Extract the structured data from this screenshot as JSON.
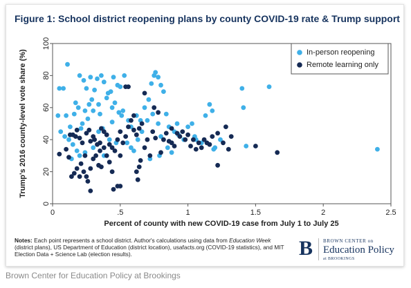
{
  "figure": {
    "title": "Figure 1: School district reopening plans by county COVID-19 rate & Trump support"
  },
  "colors": {
    "inperson": "#3fb0e8",
    "remote": "#152a54",
    "title": "#16335e",
    "grid": "#e6e6e6"
  },
  "chart_data": {
    "type": "scatter",
    "title": "Figure 1: School district reopening plans by county COVID-19 rate & Trump support",
    "xlabel": "Percent of county with new COVID-19 case from July 1 to July 25",
    "ylabel": "Trump's 2016 county-level vote share (%)",
    "xlim": [
      0,
      2.5
    ],
    "ylim": [
      0,
      100
    ],
    "xticks": [
      0,
      0.5,
      1,
      1.5,
      2,
      2.5
    ],
    "xtick_labels": [
      "0",
      ".5",
      "1",
      "1.5",
      "2",
      "2.5"
    ],
    "yticks": [
      0,
      20,
      40,
      60,
      80,
      100
    ],
    "ytick_labels": [
      "0",
      "20",
      "40",
      "60",
      "80",
      "100"
    ],
    "grid": "horizontal",
    "legend_position": "top-right",
    "series": [
      {
        "name": "In-person reopening",
        "color": "#3fb0e8",
        "points": [
          [
            0.05,
            72
          ],
          [
            0.08,
            72
          ],
          [
            0.11,
            87
          ],
          [
            0.04,
            55
          ],
          [
            0.1,
            55
          ],
          [
            0.17,
            63
          ],
          [
            0.2,
            80
          ],
          [
            0.23,
            77
          ],
          [
            0.25,
            72
          ],
          [
            0.28,
            79
          ],
          [
            0.31,
            71
          ],
          [
            0.33,
            78
          ],
          [
            0.36,
            80
          ],
          [
            0.38,
            76
          ],
          [
            0.4,
            66
          ],
          [
            0.43,
            70
          ],
          [
            0.45,
            79
          ],
          [
            0.48,
            74
          ],
          [
            0.5,
            73
          ],
          [
            0.53,
            80
          ],
          [
            0.3,
            58
          ],
          [
            0.24,
            58
          ],
          [
            0.27,
            62
          ],
          [
            0.34,
            62
          ],
          [
            0.41,
            69
          ],
          [
            0.46,
            63
          ],
          [
            0.49,
            57
          ],
          [
            0.51,
            55
          ],
          [
            0.22,
            50
          ],
          [
            0.26,
            53
          ],
          [
            0.16,
            56
          ],
          [
            0.19,
            60
          ],
          [
            0.29,
            65
          ],
          [
            0.35,
            56
          ],
          [
            0.44,
            60
          ],
          [
            0.52,
            58
          ],
          [
            0.06,
            45
          ],
          [
            0.09,
            42
          ],
          [
            0.12,
            40
          ],
          [
            0.15,
            37
          ],
          [
            0.18,
            33
          ],
          [
            0.2,
            30
          ],
          [
            0.14,
            28
          ],
          [
            0.38,
            30
          ],
          [
            0.42,
            40
          ],
          [
            0.47,
            38
          ],
          [
            0.55,
            38
          ],
          [
            0.58,
            35
          ],
          [
            0.6,
            33
          ],
          [
            0.63,
            40
          ],
          [
            0.66,
            45
          ],
          [
            0.68,
            60
          ],
          [
            0.71,
            65
          ],
          [
            0.73,
            75
          ],
          [
            0.75,
            80
          ],
          [
            0.76,
            82
          ],
          [
            0.78,
            79
          ],
          [
            0.8,
            74
          ],
          [
            0.82,
            70
          ],
          [
            0.84,
            56
          ],
          [
            0.7,
            52
          ],
          [
            0.74,
            56
          ],
          [
            0.78,
            50
          ],
          [
            0.86,
            48
          ],
          [
            0.9,
            45
          ],
          [
            0.93,
            43
          ],
          [
            0.97,
            40
          ],
          [
            1.0,
            48
          ],
          [
            1.03,
            50
          ],
          [
            1.06,
            40
          ],
          [
            1.1,
            38
          ],
          [
            1.13,
            55
          ],
          [
            1.16,
            62
          ],
          [
            1.18,
            58
          ],
          [
            1.2,
            35
          ],
          [
            1.24,
            40
          ],
          [
            1.4,
            72
          ],
          [
            1.41,
            60
          ],
          [
            1.43,
            36
          ],
          [
            1.6,
            73
          ],
          [
            2.4,
            34
          ],
          [
            0.8,
            42
          ],
          [
            0.85,
            35
          ],
          [
            0.88,
            32
          ],
          [
            0.62,
            55
          ],
          [
            0.65,
            52
          ],
          [
            0.56,
            52
          ],
          [
            0.13,
            48
          ],
          [
            0.21,
            47
          ],
          [
            0.37,
            47
          ],
          [
            0.44,
            51
          ],
          [
            0.72,
            28
          ],
          [
            0.79,
            30
          ],
          [
            1.05,
            42
          ],
          [
            1.19,
            34
          ],
          [
            0.58,
            48
          ],
          [
            0.3,
            35
          ],
          [
            0.24,
            32
          ],
          [
            0.34,
            45
          ],
          [
            0.92,
            50
          ]
        ]
      },
      {
        "name": "Remote learning only",
        "color": "#152a54",
        "points": [
          [
            0.05,
            31
          ],
          [
            0.1,
            34
          ],
          [
            0.12,
            29
          ],
          [
            0.13,
            43
          ],
          [
            0.15,
            43
          ],
          [
            0.17,
            42
          ],
          [
            0.18,
            46
          ],
          [
            0.2,
            41
          ],
          [
            0.22,
            38
          ],
          [
            0.25,
            44
          ],
          [
            0.27,
            46
          ],
          [
            0.28,
            39
          ],
          [
            0.3,
            42
          ],
          [
            0.31,
            40
          ],
          [
            0.33,
            37
          ],
          [
            0.35,
            38
          ],
          [
            0.36,
            47
          ],
          [
            0.38,
            45
          ],
          [
            0.4,
            43
          ],
          [
            0.42,
            37
          ],
          [
            0.44,
            35
          ],
          [
            0.46,
            33
          ],
          [
            0.48,
            40
          ],
          [
            0.5,
            45
          ],
          [
            0.14,
            17
          ],
          [
            0.16,
            19
          ],
          [
            0.18,
            22
          ],
          [
            0.2,
            17
          ],
          [
            0.21,
            25
          ],
          [
            0.23,
            20
          ],
          [
            0.25,
            17
          ],
          [
            0.26,
            14
          ],
          [
            0.28,
            22
          ],
          [
            0.3,
            28
          ],
          [
            0.32,
            30
          ],
          [
            0.34,
            24
          ],
          [
            0.36,
            23
          ],
          [
            0.38,
            35
          ],
          [
            0.4,
            30
          ],
          [
            0.42,
            26
          ],
          [
            0.44,
            20
          ],
          [
            0.48,
            11
          ],
          [
            0.5,
            11
          ],
          [
            0.52,
            38
          ],
          [
            0.54,
            42
          ],
          [
            0.56,
            48
          ],
          [
            0.58,
            52
          ],
          [
            0.6,
            46
          ],
          [
            0.62,
            43
          ],
          [
            0.64,
            47
          ],
          [
            0.66,
            50
          ],
          [
            0.68,
            35
          ],
          [
            0.7,
            40
          ],
          [
            0.72,
            30
          ],
          [
            0.74,
            45
          ],
          [
            0.76,
            41
          ],
          [
            0.78,
            57
          ],
          [
            0.8,
            32
          ],
          [
            0.82,
            40
          ],
          [
            0.84,
            44
          ],
          [
            0.86,
            39
          ],
          [
            0.88,
            38
          ],
          [
            0.9,
            36
          ],
          [
            0.92,
            44
          ],
          [
            0.94,
            42
          ],
          [
            0.96,
            45
          ],
          [
            0.98,
            40
          ],
          [
            1.0,
            43
          ],
          [
            1.02,
            36
          ],
          [
            1.04,
            40
          ],
          [
            1.06,
            34
          ],
          [
            1.08,
            38
          ],
          [
            1.1,
            35
          ],
          [
            1.12,
            40
          ],
          [
            1.14,
            38
          ],
          [
            1.16,
            37
          ],
          [
            1.18,
            42
          ],
          [
            1.22,
            44
          ],
          [
            1.26,
            38
          ],
          [
            1.28,
            48
          ],
          [
            1.3,
            34
          ],
          [
            1.32,
            42
          ],
          [
            1.5,
            36
          ],
          [
            1.66,
            32
          ],
          [
            0.62,
            20
          ],
          [
            0.63,
            15
          ],
          [
            0.65,
            27
          ],
          [
            0.54,
            73
          ],
          [
            0.56,
            73
          ],
          [
            0.6,
            55
          ],
          [
            0.64,
            23
          ],
          [
            0.68,
            69
          ],
          [
            0.28,
            8
          ],
          [
            0.5,
            30
          ],
          [
            0.24,
            30
          ],
          [
            1.22,
            24
          ],
          [
            0.45,
            9
          ],
          [
            0.35,
            33
          ],
          [
            0.75,
            60
          ],
          [
            0.88,
            47
          ]
        ]
      }
    ]
  },
  "notes": {
    "label": "Notes:",
    "t1": " Each point represents a school district. Author's calculations using data from ",
    "source1": "Education Week",
    "t2": " (district plans), US Department of Education (district location), usafacts.org (COVID-19 statistics), and MIT Election Data + Science Lab (election results)."
  },
  "logo": {
    "mark": "B",
    "line1": "BROWN CENTER on",
    "line2": "Education Policy",
    "line3": "at BROOKINGS"
  },
  "caption": "Brown Center for Education Policy at Brookings"
}
